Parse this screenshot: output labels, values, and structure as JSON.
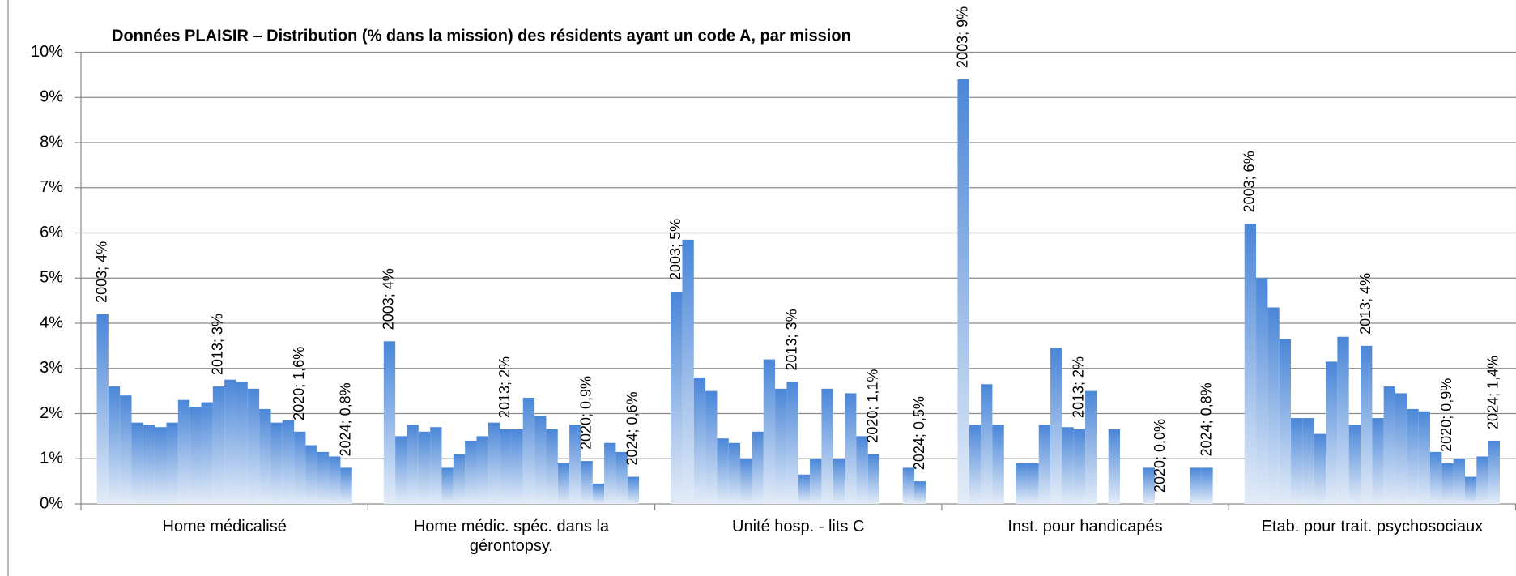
{
  "chart_data": {
    "type": "bar",
    "title": "Données PLAISIR – Distribution (% dans la mission) des résidents ayant un code A, par mission",
    "color": "#4a86d8",
    "ylim": [
      0,
      10
    ],
    "yticks": [
      {
        "value": 0,
        "label": "0%"
      },
      {
        "value": 1,
        "label": "1%"
      },
      {
        "value": 2,
        "label": "2%"
      },
      {
        "value": 3,
        "label": "3%"
      },
      {
        "value": 4,
        "label": "4%"
      },
      {
        "value": 5,
        "label": "5%"
      },
      {
        "value": 6,
        "label": "6%"
      },
      {
        "value": 7,
        "label": "7%"
      },
      {
        "value": 8,
        "label": "8%"
      },
      {
        "value": 9,
        "label": "9%"
      },
      {
        "value": 10,
        "label": "10%"
      }
    ],
    "grid": true,
    "categories": [
      "Home médicalisé",
      "Home médic. spéc. dans la gérontopsy.",
      "Unité hosp. - lits C",
      "Inst. pour handicapés",
      "Etab. pour trait. psychosociaux"
    ],
    "groups": [
      {
        "values": [
          4.2,
          2.6,
          2.4,
          1.8,
          1.75,
          1.7,
          1.8,
          2.3,
          2.15,
          2.25,
          2.6,
          2.75,
          2.7,
          2.55,
          2.1,
          1.8,
          1.85,
          1.6,
          1.3,
          1.15,
          1.05,
          0.8
        ],
        "value_labels": [
          "2003; 4%",
          null,
          null,
          null,
          null,
          null,
          null,
          null,
          null,
          null,
          "2013; 3%",
          null,
          null,
          null,
          null,
          null,
          null,
          "2020; 1,6%",
          null,
          null,
          null,
          "2024; 0,8%"
        ]
      },
      {
        "values": [
          3.6,
          1.5,
          1.75,
          1.6,
          1.7,
          0.8,
          1.1,
          1.4,
          1.5,
          1.8,
          1.65,
          1.65,
          2.35,
          1.95,
          1.65,
          0.9,
          1.75,
          0.95,
          0.45,
          1.35,
          1.15,
          0.6
        ],
        "value_labels": [
          "2003; 4%",
          null,
          null,
          null,
          null,
          null,
          null,
          null,
          null,
          null,
          "2013; 2%",
          null,
          null,
          null,
          null,
          null,
          null,
          "2020; 0,9%",
          null,
          null,
          null,
          "2024; 0,6%"
        ]
      },
      {
        "values": [
          4.7,
          5.85,
          2.8,
          2.5,
          1.45,
          1.35,
          1.0,
          1.6,
          3.2,
          2.55,
          2.7,
          0.65,
          1.0,
          2.55,
          1.0,
          2.45,
          1.5,
          1.1,
          null,
          null,
          0.8,
          0.5
        ],
        "value_labels": [
          "2003; 5%",
          null,
          null,
          null,
          null,
          null,
          null,
          null,
          null,
          null,
          "2013; 3%",
          null,
          null,
          null,
          null,
          null,
          null,
          "2020; 1,1%",
          null,
          null,
          null,
          "2024; 0,5%"
        ]
      },
      {
        "values": [
          9.4,
          1.75,
          2.65,
          1.75,
          null,
          0.9,
          0.9,
          1.75,
          3.45,
          1.7,
          1.65,
          2.5,
          null,
          1.65,
          null,
          null,
          0.8,
          0.0,
          null,
          null,
          0.8,
          0.8
        ],
        "value_labels": [
          "2003; 9%",
          null,
          null,
          null,
          null,
          null,
          null,
          null,
          null,
          null,
          "2013; 2%",
          null,
          null,
          null,
          null,
          null,
          null,
          "2020; 0,0%",
          null,
          null,
          null,
          "2024; 0,8%"
        ]
      },
      {
        "values": [
          6.2,
          5.0,
          4.35,
          3.65,
          1.9,
          1.9,
          1.55,
          3.15,
          3.7,
          1.75,
          3.5,
          1.9,
          2.6,
          2.45,
          2.1,
          2.05,
          1.15,
          0.9,
          1.0,
          0.6,
          1.05,
          1.4
        ],
        "value_labels": [
          "2003; 6%",
          null,
          null,
          null,
          null,
          null,
          null,
          null,
          null,
          null,
          "2013; 4%",
          null,
          null,
          null,
          null,
          null,
          null,
          "2020; 0,9%",
          null,
          null,
          null,
          "2024; 1,4%"
        ]
      }
    ]
  }
}
